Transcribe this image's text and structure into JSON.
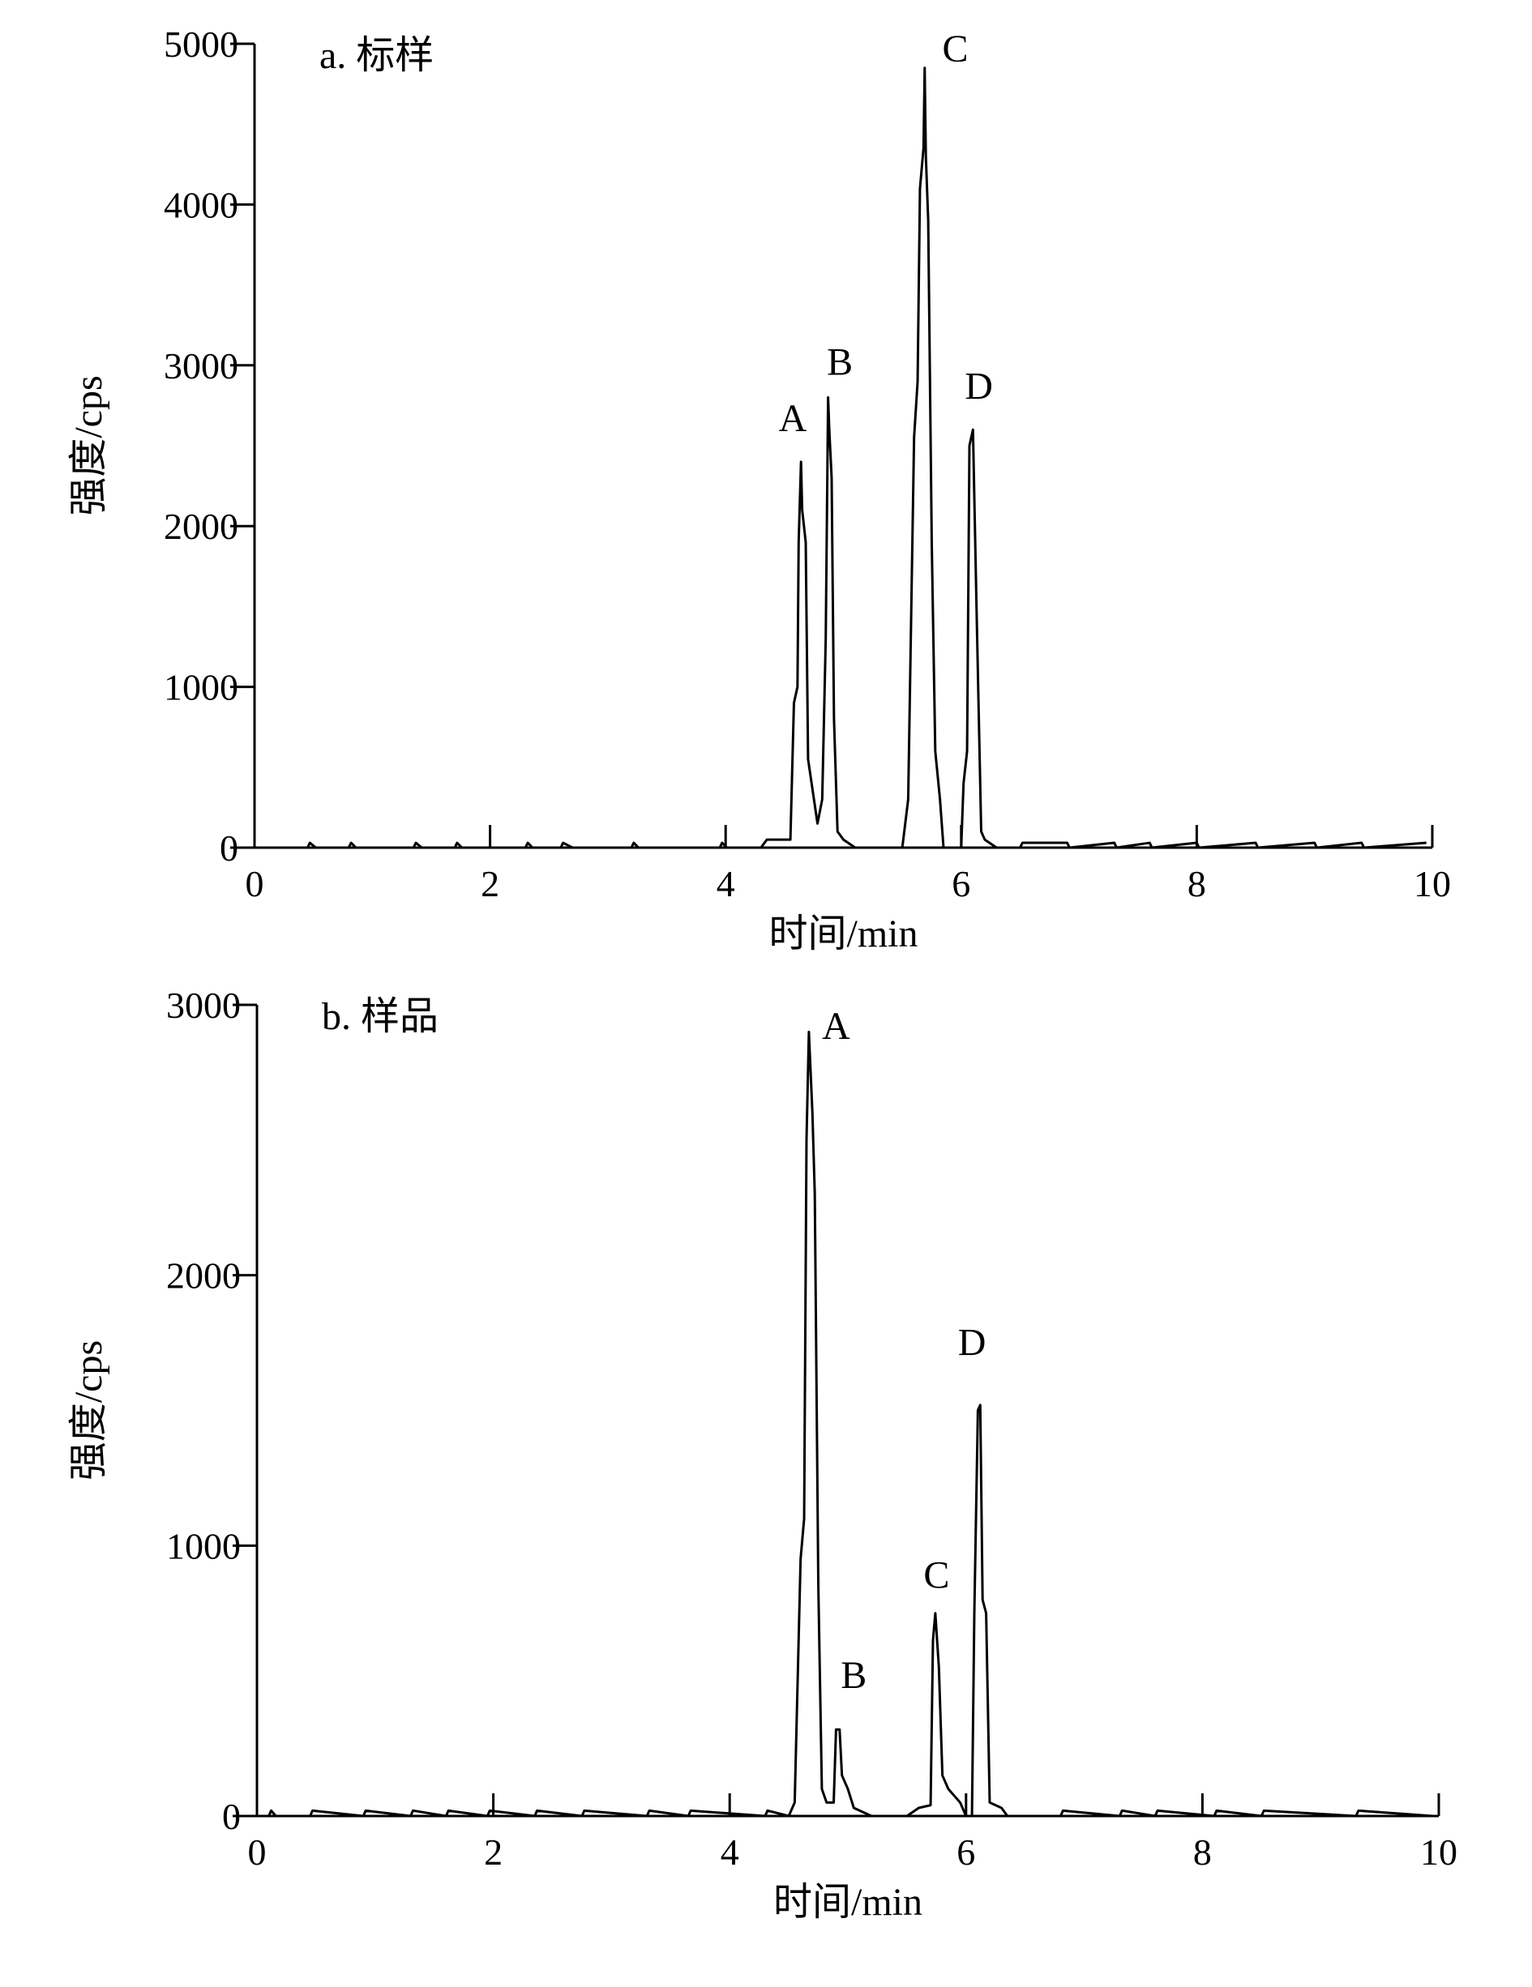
{
  "chart_data": [
    {
      "type": "line",
      "title": "a. 标样",
      "xlabel": "时间/min",
      "ylabel": "强度/cps",
      "xlim": [
        0,
        10
      ],
      "xticks": [
        0,
        2,
        4,
        6,
        8,
        10
      ],
      "ylim": [
        0,
        5000
      ],
      "yticks": [
        0,
        1000,
        2000,
        3000,
        4000,
        5000
      ],
      "x": [
        0.05,
        0.45,
        0.47,
        0.52,
        0.8,
        0.82,
        0.86,
        1.35,
        1.37,
        1.42,
        1.7,
        1.72,
        1.76,
        2.3,
        2.32,
        2.36,
        2.6,
        2.62,
        2.7,
        3.2,
        3.22,
        3.26,
        3.95,
        3.97,
        4.01,
        4.3,
        4.35,
        4.45,
        4.55,
        4.58,
        4.61,
        4.62,
        4.64,
        4.65,
        4.68,
        4.7,
        4.75,
        4.78,
        4.82,
        4.85,
        4.87,
        4.88,
        4.9,
        4.92,
        4.95,
        5.0,
        5.1,
        5.5,
        5.55,
        5.6,
        5.63,
        5.65,
        5.68,
        5.69,
        5.7,
        5.72,
        5.75,
        5.78,
        5.82,
        5.85,
        6.0,
        6.02,
        6.05,
        6.07,
        6.1,
        6.13,
        6.17,
        6.2,
        6.3,
        6.5,
        6.52,
        6.9,
        6.92,
        7.3,
        7.32,
        7.6,
        7.62,
        8.0,
        8.02,
        8.5,
        8.52,
        9.0,
        9.02,
        9.4,
        9.42,
        9.95
      ],
      "series": [
        {
          "color": "#000000",
          "values": [
            0,
            0,
            30,
            0,
            0,
            30,
            0,
            0,
            30,
            0,
            0,
            30,
            0,
            0,
            30,
            0,
            0,
            30,
            0,
            0,
            30,
            0,
            0,
            30,
            0,
            0,
            50,
            50,
            50,
            900,
            1000,
            1900,
            2400,
            2100,
            1900,
            550,
            300,
            150,
            300,
            1300,
            2800,
            2600,
            2300,
            800,
            100,
            50,
            0,
            0,
            300,
            2550,
            2900,
            4100,
            4350,
            4850,
            4300,
            3900,
            1900,
            600,
            300,
            0,
            0,
            400,
            600,
            2500,
            2600,
            1500,
            100,
            50,
            0,
            0,
            30,
            30,
            0,
            30,
            0,
            30,
            0,
            30,
            0,
            30,
            0,
            30,
            0,
            30,
            0,
            30
          ]
        }
      ],
      "annotations": [
        {
          "text": "A",
          "x": 4.57,
          "y": 2550
        },
        {
          "text": "B",
          "x": 4.97,
          "y": 2900
        },
        {
          "text": "C",
          "x": 5.95,
          "y": 4850
        },
        {
          "text": "D",
          "x": 6.15,
          "y": 2750
        }
      ]
    },
    {
      "type": "line",
      "title": "b. 样品",
      "xlabel": "时间/min",
      "ylabel": "强度/cps",
      "xlim": [
        0,
        10
      ],
      "xticks": [
        0,
        2,
        4,
        6,
        8,
        10
      ],
      "ylim": [
        0,
        3000
      ],
      "yticks": [
        0,
        1000,
        2000,
        3000
      ],
      "x": [
        0.05,
        0.1,
        0.12,
        0.16,
        0.45,
        0.47,
        0.9,
        0.92,
        1.3,
        1.32,
        1.6,
        1.62,
        1.95,
        1.97,
        2.35,
        2.37,
        2.75,
        2.77,
        3.3,
        3.32,
        3.65,
        3.67,
        4.3,
        4.32,
        4.5,
        4.55,
        4.6,
        4.63,
        4.65,
        4.67,
        4.7,
        4.72,
        4.75,
        4.78,
        4.82,
        4.88,
        4.9,
        4.93,
        4.95,
        5.0,
        5.05,
        5.2,
        5.5,
        5.6,
        5.7,
        5.72,
        5.74,
        5.77,
        5.8,
        5.85,
        5.95,
        6.0,
        6.05,
        6.07,
        6.1,
        6.12,
        6.14,
        6.17,
        6.2,
        6.3,
        6.35,
        6.8,
        6.82,
        7.3,
        7.32,
        7.6,
        7.62,
        8.1,
        8.12,
        8.5,
        8.52,
        9.3,
        9.32,
        9.95
      ],
      "series": [
        {
          "color": "#000000",
          "values": [
            0,
            0,
            20,
            0,
            0,
            20,
            0,
            20,
            0,
            20,
            0,
            20,
            0,
            20,
            0,
            20,
            0,
            20,
            0,
            20,
            0,
            20,
            0,
            20,
            0,
            50,
            950,
            1100,
            2500,
            2900,
            2600,
            2300,
            850,
            100,
            50,
            50,
            320,
            320,
            150,
            100,
            30,
            0,
            0,
            30,
            40,
            650,
            750,
            550,
            150,
            100,
            50,
            0,
            0,
            750,
            1500,
            1520,
            800,
            750,
            50,
            30,
            0,
            0,
            20,
            0,
            20,
            0,
            20,
            0,
            20,
            0,
            20,
            0,
            20,
            0
          ]
        }
      ],
      "annotations": [
        {
          "text": "A",
          "x": 4.9,
          "y": 2850
        },
        {
          "text": "B",
          "x": 5.05,
          "y": 450
        },
        {
          "text": "C",
          "x": 5.75,
          "y": 820
        },
        {
          "text": "D",
          "x": 6.05,
          "y": 1680
        }
      ]
    }
  ]
}
